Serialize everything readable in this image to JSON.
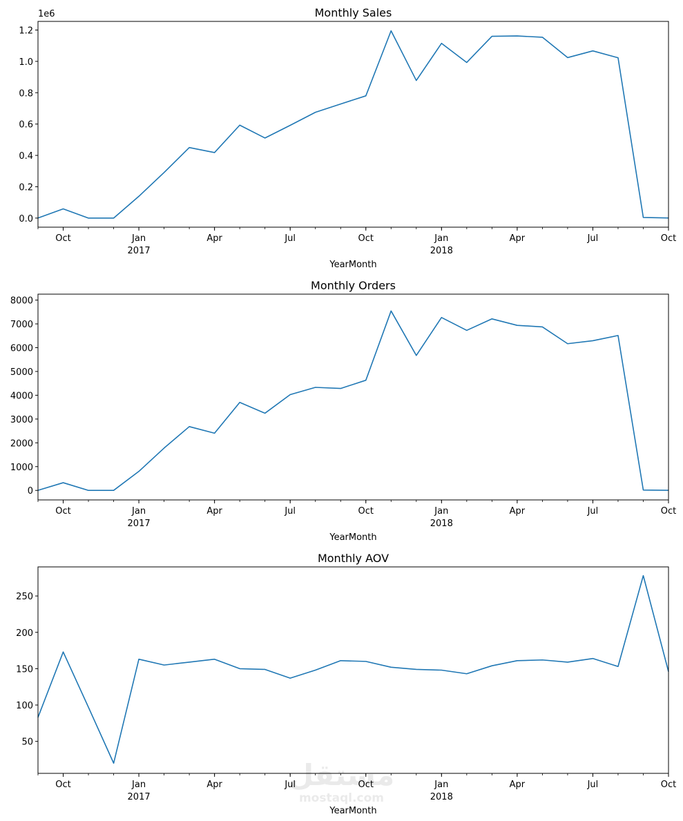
{
  "x_ticks": {
    "minor_months": 26,
    "labels": [
      {
        "month_index": 1,
        "label": "Oct",
        "year": ""
      },
      {
        "month_index": 4,
        "label": "Jan",
        "year": "2017"
      },
      {
        "month_index": 7,
        "label": "Apr",
        "year": ""
      },
      {
        "month_index": 10,
        "label": "Jul",
        "year": ""
      },
      {
        "month_index": 13,
        "label": "Oct",
        "year": ""
      },
      {
        "month_index": 16,
        "label": "Jan",
        "year": "2018"
      },
      {
        "month_index": 19,
        "label": "Apr",
        "year": ""
      },
      {
        "month_index": 22,
        "label": "Jul",
        "year": ""
      },
      {
        "month_index": 25,
        "label": "Oct",
        "year": ""
      }
    ]
  },
  "chart_data": [
    {
      "type": "line",
      "title": "Monthly Sales",
      "xlabel": "YearMonth",
      "ylabel": "",
      "y_offset_label": "1e6",
      "x": [
        "2016-09",
        "2016-10",
        "2016-11",
        "2016-12",
        "2017-01",
        "2017-02",
        "2017-03",
        "2017-04",
        "2017-05",
        "2017-06",
        "2017-07",
        "2017-08",
        "2017-09",
        "2017-10",
        "2017-11",
        "2017-12",
        "2018-01",
        "2018-02",
        "2018-03",
        "2018-04",
        "2018-05",
        "2018-06",
        "2018-07",
        "2018-08",
        "2018-09",
        "2018-10"
      ],
      "values": [
        0.0003,
        0.059,
        0,
        0,
        0.139,
        0.291,
        0.45,
        0.418,
        0.593,
        0.511,
        0.592,
        0.675,
        0.728,
        0.78,
        1.195,
        0.878,
        1.115,
        0.993,
        1.16,
        1.162,
        1.154,
        1.024,
        1.067,
        1.023,
        0.004,
        0.0006
      ],
      "ylim": [
        -0.058,
        1.255
      ],
      "yticks": [
        0.0,
        0.2,
        0.4,
        0.6,
        0.8,
        1.0,
        1.2
      ],
      "ytick_labels": [
        "0.0",
        "0.2",
        "0.4",
        "0.6",
        "0.8",
        "1.0",
        "1.2"
      ],
      "color": "#1f77b4"
    },
    {
      "type": "line",
      "title": "Monthly Orders",
      "xlabel": "YearMonth",
      "ylabel": "",
      "x": [
        "2016-09",
        "2016-10",
        "2016-11",
        "2016-12",
        "2017-01",
        "2017-02",
        "2017-03",
        "2017-04",
        "2017-05",
        "2017-06",
        "2017-07",
        "2017-08",
        "2017-09",
        "2017-10",
        "2017-11",
        "2017-12",
        "2018-01",
        "2018-02",
        "2018-03",
        "2018-04",
        "2018-05",
        "2018-06",
        "2018-07",
        "2018-08",
        "2018-09",
        "2018-10"
      ],
      "values": [
        4,
        324,
        0,
        1,
        800,
        1780,
        2682,
        2404,
        3700,
        3245,
        4026,
        4331,
        4285,
        4631,
        7544,
        5673,
        7269,
        6728,
        7211,
        6939,
        6873,
        6167,
        6292,
        6512,
        16,
        4
      ],
      "ylim": [
        -400,
        8250
      ],
      "yticks": [
        0,
        1000,
        2000,
        3000,
        4000,
        5000,
        6000,
        7000,
        8000
      ],
      "ytick_labels": [
        "0",
        "1000",
        "2000",
        "3000",
        "4000",
        "5000",
        "6000",
        "7000",
        "8000"
      ],
      "color": "#1f77b4"
    },
    {
      "type": "line",
      "title": "Monthly AOV",
      "xlabel": "YearMonth",
      "ylabel": "",
      "x": [
        "2016-09",
        "2016-10",
        "2016-11",
        "2016-12",
        "2017-01",
        "2017-02",
        "2017-03",
        "2017-04",
        "2017-05",
        "2017-06",
        "2017-07",
        "2017-08",
        "2017-09",
        "2017-10",
        "2017-11",
        "2017-12",
        "2018-01",
        "2018-02",
        "2018-03",
        "2018-04",
        "2018-05",
        "2018-06",
        "2018-07",
        "2018-08",
        "2018-09",
        "2018-10"
      ],
      "values": [
        83,
        173,
        97,
        20,
        163,
        155,
        159,
        163,
        150,
        149,
        137,
        148,
        161,
        160,
        152,
        149,
        148,
        143,
        154,
        161,
        162,
        159,
        164,
        153,
        278,
        146
      ],
      "ylim": [
        6,
        290
      ],
      "yticks": [
        50,
        100,
        150,
        200,
        250
      ],
      "ytick_labels": [
        "50",
        "100",
        "150",
        "200",
        "250"
      ],
      "color": "#1f77b4"
    }
  ],
  "watermark": {
    "text": "mostaql.com",
    "logo_text": "مستقل"
  }
}
